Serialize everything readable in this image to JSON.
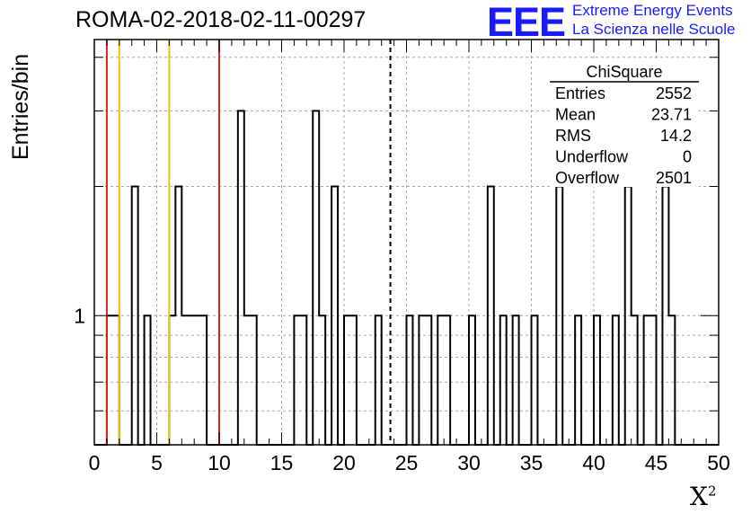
{
  "header": {
    "title": "ROMA-02-2018-02-11-00297",
    "logo_text": "EEE",
    "logo_line1": "Extreme Energy Events",
    "logo_line2": "La Scienza nelle Scuole"
  },
  "stats_box": {
    "name": "ChiSquare",
    "rows": [
      {
        "label": "Entries",
        "value": "2552"
      },
      {
        "label": "Mean",
        "value": "23.71"
      },
      {
        "label": "RMS",
        "value": "14.2"
      },
      {
        "label": "Underflow",
        "value": "0"
      },
      {
        "label": "Overflow",
        "value": "2501"
      }
    ]
  },
  "chart_data": {
    "type": "bar",
    "title": "ROMA-02-2018-02-11-00297",
    "xlabel": "X",
    "xlabel_superscript": "2",
    "ylabel": "Entries/bin",
    "xlim": [
      0,
      50
    ],
    "ylog": true,
    "ylim": [
      0.5,
      4.4
    ],
    "bin_width": 0.5,
    "xticks": [
      0,
      5,
      10,
      15,
      20,
      25,
      30,
      35,
      40,
      45,
      50
    ],
    "yticks": [
      1
    ],
    "grid": true,
    "bins": [
      {
        "x": 1.0,
        "y": 1
      },
      {
        "x": 1.5,
        "y": 1
      },
      {
        "x": 3.0,
        "y": 2
      },
      {
        "x": 4.0,
        "y": 1
      },
      {
        "x": 6.0,
        "y": 1
      },
      {
        "x": 6.5,
        "y": 2
      },
      {
        "x": 7.0,
        "y": 1
      },
      {
        "x": 7.5,
        "y": 1
      },
      {
        "x": 8.0,
        "y": 1
      },
      {
        "x": 8.5,
        "y": 1
      },
      {
        "x": 11.5,
        "y": 3
      },
      {
        "x": 12.0,
        "y": 1
      },
      {
        "x": 12.5,
        "y": 1
      },
      {
        "x": 16.0,
        "y": 1
      },
      {
        "x": 16.5,
        "y": 1
      },
      {
        "x": 17.5,
        "y": 3
      },
      {
        "x": 18.0,
        "y": 1
      },
      {
        "x": 19.0,
        "y": 2
      },
      {
        "x": 20.0,
        "y": 1
      },
      {
        "x": 20.5,
        "y": 1
      },
      {
        "x": 22.5,
        "y": 1
      },
      {
        "x": 25.0,
        "y": 1
      },
      {
        "x": 26.0,
        "y": 1
      },
      {
        "x": 26.5,
        "y": 1
      },
      {
        "x": 27.5,
        "y": 1
      },
      {
        "x": 28.0,
        "y": 1
      },
      {
        "x": 30.0,
        "y": 1
      },
      {
        "x": 31.5,
        "y": 2
      },
      {
        "x": 32.5,
        "y": 1
      },
      {
        "x": 33.5,
        "y": 1
      },
      {
        "x": 35.0,
        "y": 1
      },
      {
        "x": 37.0,
        "y": 2
      },
      {
        "x": 38.5,
        "y": 1
      },
      {
        "x": 40.0,
        "y": 1
      },
      {
        "x": 41.5,
        "y": 1
      },
      {
        "x": 42.5,
        "y": 2
      },
      {
        "x": 43.0,
        "y": 1
      },
      {
        "x": 44.0,
        "y": 1
      },
      {
        "x": 44.5,
        "y": 1
      },
      {
        "x": 45.5,
        "y": 2
      },
      {
        "x": 46.0,
        "y": 1
      }
    ],
    "reference_lines": [
      {
        "x": 1.0,
        "color": "#e0201c",
        "style": "solid"
      },
      {
        "x": 2.0,
        "color": "#f2c200",
        "style": "solid"
      },
      {
        "x": 6.0,
        "color": "#f2c200",
        "style": "solid"
      },
      {
        "x": 10.0,
        "color": "#e0201c",
        "style": "solid"
      },
      {
        "x": 23.71,
        "color": "#000000",
        "style": "dashed"
      }
    ]
  },
  "colors": {
    "logo_blue": "#1a1aff",
    "histogram": "#000000",
    "grid": "#a8a8a8"
  }
}
